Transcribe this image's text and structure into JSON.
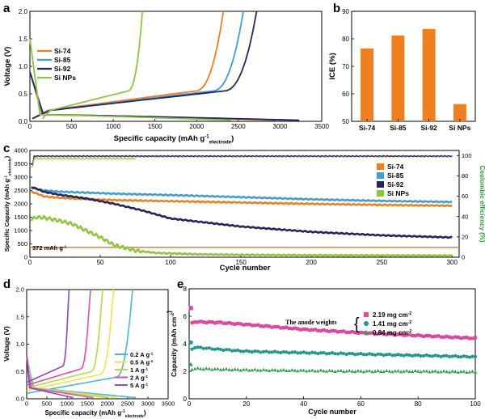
{
  "colors": {
    "si74": "#f07f1e",
    "si85": "#3d9fd6",
    "si92": "#26245e",
    "sinps": "#8dc63f",
    "ce_axis": "#2c9e3a",
    "ref_line": "#f07f1e",
    "bar": "#f07f1e",
    "e1": "#e0479e",
    "e2": "#1f9a8a",
    "e3": "#2aa14a",
    "d1": "#4fb3e3",
    "d2": "#f2e640",
    "d3": "#b3dd3e",
    "d4": "#e64ca0",
    "d5": "#8a49c7"
  },
  "chart_data": [
    {
      "panel": "a",
      "type": "line",
      "xlabel": "Specific capacity (mAh g",
      "xlabel_sup": "-1",
      "xlabel_sub": "electrode",
      "xlabel_end": ")",
      "ylabel": "Voltage (V)",
      "xlim": [
        0,
        3500
      ],
      "ylim": [
        0,
        2.0
      ],
      "xticks": [
        "0",
        "500",
        "1000",
        "1500",
        "2000",
        "2500",
        "3000",
        "3500"
      ],
      "yticks": [
        "0.0",
        "0.5",
        "1.0",
        "1.5",
        "2.0"
      ],
      "legend": [
        "Si-74",
        "Si-85",
        "Si-92",
        "Si NPs"
      ],
      "series": [
        {
          "name": "Si-74",
          "discharge_end": 2950,
          "charge_end": 2320,
          "charge_start": 30
        },
        {
          "name": "Si-85",
          "discharge_end": 3150,
          "charge_end": 2560,
          "charge_start": 30
        },
        {
          "name": "Si-92",
          "discharge_end": 3230,
          "charge_end": 2720,
          "charge_start": 30
        },
        {
          "name": "Si NPs",
          "discharge_end": 2410,
          "charge_end": 1350,
          "charge_start": 150
        }
      ]
    },
    {
      "panel": "b",
      "type": "bar",
      "ylabel": "ICE (%)",
      "categories": [
        "Si-74",
        "Si-85",
        "Si-92",
        "Si NPs"
      ],
      "values": [
        76.5,
        81.2,
        83.6,
        56.3
      ],
      "ylim": [
        50,
        90
      ],
      "yticks": [
        "50",
        "60",
        "70",
        "80",
        "90"
      ]
    },
    {
      "panel": "c",
      "type": "line",
      "xlabel": "Cycle number",
      "ylabel": "Specific Capacity (mAh g",
      "ylabel_sup": "-1",
      "ylabel_sub": "electrode",
      "ylabel_end": ")",
      "y2label": "Coulombic efficiency (%)",
      "xlim": [
        0,
        305
      ],
      "ylim": [
        0,
        4000
      ],
      "y2lim": [
        0,
        105
      ],
      "xticks": [
        "0",
        "50",
        "100",
        "150",
        "200",
        "250",
        "300"
      ],
      "yticks": [
        "0",
        "500",
        "1000",
        "1500",
        "2000",
        "2500",
        "3000",
        "3500",
        "4000"
      ],
      "y2ticks": [
        "0",
        "20",
        "40",
        "60",
        "80",
        "100"
      ],
      "annotation": "372 mAh g",
      "annotation_sup": "-1",
      "reference_value": 372,
      "legend": [
        "Si-74",
        "Si-85",
        "Si-92",
        "Si NPs"
      ],
      "series": [
        {
          "name": "Si-74",
          "x": [
            0,
            5,
            10,
            20,
            40,
            60,
            100,
            150,
            200,
            250,
            300
          ],
          "y": [
            2480,
            2380,
            2280,
            2230,
            2180,
            2140,
            2100,
            2050,
            2000,
            1960,
            1930
          ]
        },
        {
          "name": "Si-85",
          "x": [
            0,
            5,
            10,
            20,
            40,
            60,
            100,
            150,
            200,
            250,
            300
          ],
          "y": [
            2620,
            2560,
            2500,
            2460,
            2420,
            2380,
            2330,
            2250,
            2170,
            2110,
            2070
          ]
        },
        {
          "name": "Si-92",
          "x": [
            0,
            5,
            10,
            20,
            40,
            60,
            80,
            100,
            150,
            200,
            250,
            300
          ],
          "y": [
            2650,
            2560,
            2450,
            2350,
            2200,
            2000,
            1750,
            1450,
            1150,
            950,
            820,
            740
          ]
        },
        {
          "name": "Si NPs",
          "x": [
            0,
            5,
            10,
            20,
            30,
            40,
            50,
            60,
            75,
            90,
            120,
            150,
            200,
            250,
            300
          ],
          "y": [
            1400,
            1500,
            1480,
            1380,
            1250,
            1000,
            750,
            450,
            250,
            160,
            110,
            90,
            75,
            68,
            60
          ]
        }
      ],
      "ce_series": [
        {
          "name": "Si-74",
          "value": 99
        },
        {
          "name": "Si-85",
          "value": 99.3
        },
        {
          "name": "Si-92",
          "value": 99.5
        },
        {
          "name": "Si NPs",
          "value": 97
        }
      ]
    },
    {
      "panel": "d",
      "type": "line",
      "xlabel": "Specific capacity (mAh g",
      "xlabel_sup": "-1",
      "xlabel_sub": "electrode",
      "xlabel_end": ")",
      "ylabel": "Voltage (V)",
      "xlim": [
        0,
        3500
      ],
      "ylim": [
        0,
        2.0
      ],
      "xticks": [
        "0",
        "500",
        "1000",
        "1500",
        "2000",
        "2500",
        "3000",
        "3500"
      ],
      "yticks": [
        "0.0",
        "0.5",
        "1.0",
        "1.5",
        "2.0"
      ],
      "legend": [
        "0.2 A g",
        "0.5 A g",
        "1 A g",
        "2 A g",
        "5 A g"
      ],
      "legend_sup": "-1",
      "series": [
        {
          "name": "0.2 A g-1",
          "discharge_end": 2700,
          "charge_end": 2620
        },
        {
          "name": "0.5 A g-1",
          "discharge_end": 2250,
          "charge_end": 2150
        },
        {
          "name": "1 A g-1",
          "discharge_end": 2000,
          "charge_end": 1880
        },
        {
          "name": "2 A g-1",
          "discharge_end": 1650,
          "charge_end": 1580
        },
        {
          "name": "5 A g-1",
          "discharge_end": 1150,
          "charge_end": 1050
        }
      ]
    },
    {
      "panel": "e",
      "type": "scatter",
      "xlabel": "Cycle number",
      "ylabel": "Capacity (mAh cm",
      "ylabel_sup": "-2",
      "ylabel_end": ")",
      "xlim": [
        0,
        100
      ],
      "ylim": [
        0,
        8
      ],
      "xticks": [
        "0",
        "20",
        "40",
        "60",
        "80",
        "100"
      ],
      "yticks": [
        "0",
        "2",
        "4",
        "6",
        "8"
      ],
      "annotation": "The anode weights",
      "legend": [
        "2.19 mg cm",
        "1.41 mg cm",
        "0.84 mg cm"
      ],
      "legend_sup": "-2",
      "series": [
        {
          "name": "2.19 mg cm-2",
          "first": 6.6,
          "x": [
            1,
            2,
            10,
            20,
            40,
            60,
            80,
            100
          ],
          "y": [
            5.5,
            5.6,
            5.55,
            5.4,
            5.05,
            4.8,
            4.6,
            4.4
          ]
        },
        {
          "name": "1.41 mg cm-2",
          "first": 4.1,
          "x": [
            1,
            2,
            10,
            20,
            40,
            60,
            80,
            100
          ],
          "y": [
            3.6,
            3.75,
            3.6,
            3.45,
            3.35,
            3.25,
            3.15,
            3.05
          ]
        },
        {
          "name": "0.84 mg cm-2",
          "first": 2.5,
          "x": [
            1,
            2,
            10,
            20,
            40,
            60,
            80,
            100
          ],
          "y": [
            2.15,
            2.2,
            2.15,
            2.1,
            2.05,
            2.0,
            2.0,
            1.95
          ]
        }
      ]
    }
  ],
  "panel_labels": [
    "a",
    "b",
    "c",
    "d",
    "e"
  ]
}
